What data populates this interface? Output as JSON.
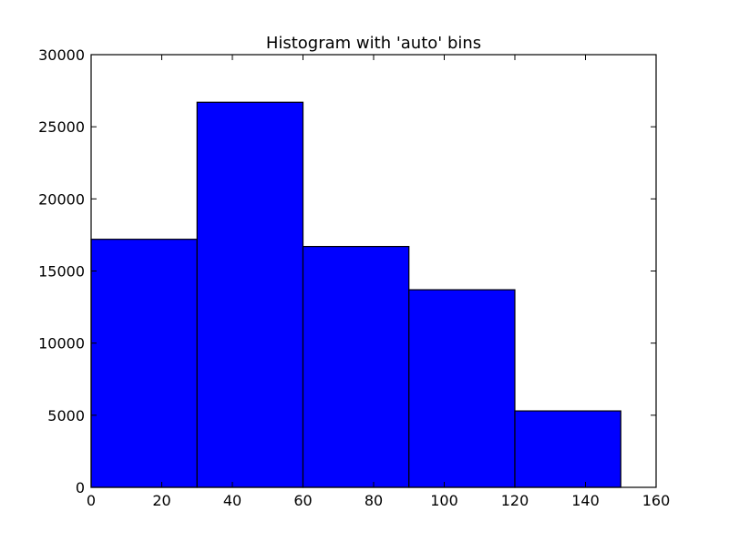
{
  "chart_data": {
    "type": "bar",
    "title": "Histogram with 'auto' bins",
    "xlabel": "",
    "ylabel": "",
    "xlim": [
      0,
      160
    ],
    "ylim": [
      0,
      30000
    ],
    "xticks": [
      0,
      20,
      40,
      60,
      80,
      100,
      120,
      140,
      160
    ],
    "yticks": [
      0,
      5000,
      10000,
      15000,
      20000,
      25000,
      30000
    ],
    "bins": [
      {
        "x0": 0,
        "x1": 30,
        "value": 17200
      },
      {
        "x0": 30,
        "x1": 60,
        "value": 26700
      },
      {
        "x0": 60,
        "x1": 90,
        "value": 16700
      },
      {
        "x0": 90,
        "x1": 120,
        "value": 13700
      },
      {
        "x0": 120,
        "x1": 150,
        "value": 5300
      }
    ],
    "bar_color": "#0000ff",
    "grid": false,
    "legend": "none"
  }
}
